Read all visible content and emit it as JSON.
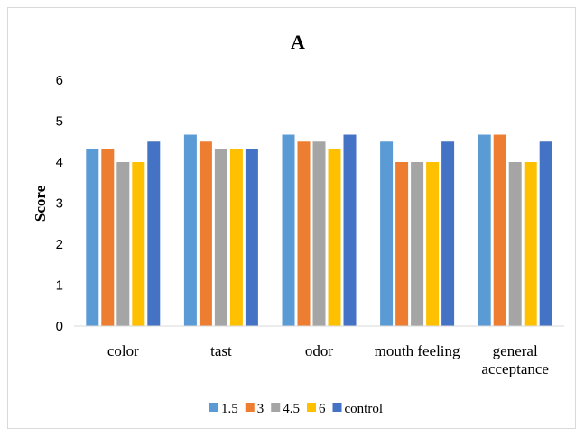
{
  "chart_data": {
    "type": "bar",
    "title": "A",
    "xlabel": "",
    "ylabel": "Score",
    "ylim": [
      0,
      6
    ],
    "yticks": [
      0,
      1,
      2,
      3,
      4,
      5,
      6
    ],
    "grid": false,
    "legend_position": "bottom",
    "categories": [
      [
        "color"
      ],
      [
        "tast"
      ],
      [
        "odor"
      ],
      [
        "mouth feeling"
      ],
      [
        "general",
        "acceptance"
      ]
    ],
    "series": [
      {
        "name": "1.5",
        "color": "#5B9BD5",
        "values": [
          4.33,
          4.67,
          4.67,
          4.5,
          4.67
        ]
      },
      {
        "name": "3",
        "color": "#ED7D31",
        "values": [
          4.33,
          4.5,
          4.5,
          4.0,
          4.67
        ]
      },
      {
        "name": "4.5",
        "color": "#A5A5A5",
        "values": [
          4.0,
          4.33,
          4.5,
          4.0,
          4.0
        ]
      },
      {
        "name": "6",
        "color": "#FFC000",
        "values": [
          4.0,
          4.33,
          4.33,
          4.0,
          4.0
        ]
      },
      {
        "name": "control",
        "color": "#4472C4",
        "values": [
          4.5,
          4.33,
          4.67,
          4.5,
          4.5
        ]
      }
    ]
  }
}
